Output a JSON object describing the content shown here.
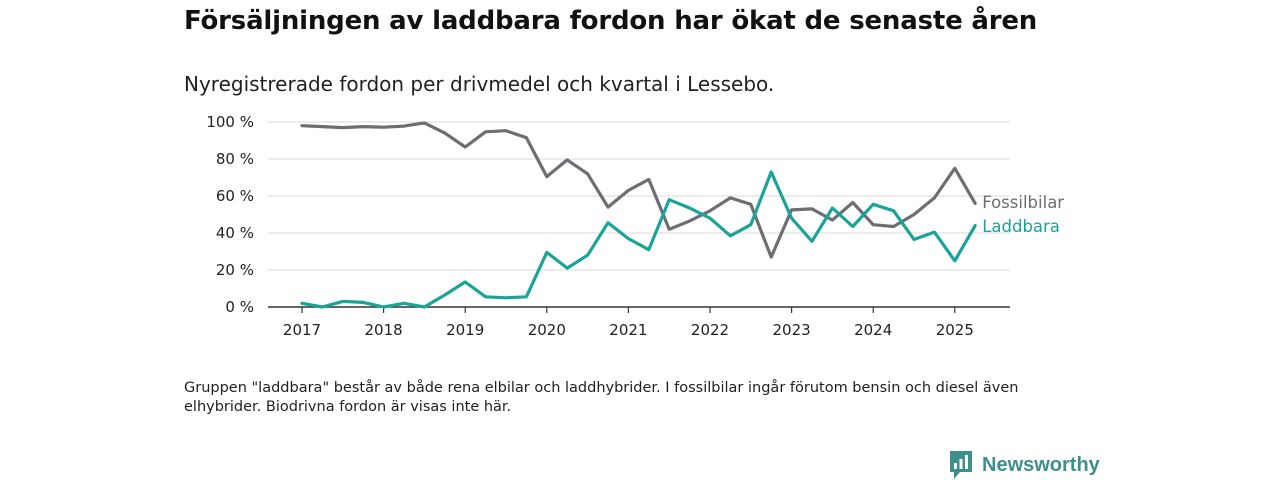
{
  "title": "Försäljningen av laddbara fordon har ökat de senaste åren",
  "subtitle": "Nyregistrerade fordon per drivmedel och kvartal i Lessebo.",
  "note": "Gruppen \"laddbara\" består av både rena elbilar och laddhybrider. I fossilbilar ingår förutom bensin och diesel även elhybrider. Biodrivna fordon är visas inte här.",
  "brand": {
    "name": "Newsworthy",
    "icon": "newsworthy-logo-icon",
    "color": "#3d8f8b"
  },
  "chart_data": {
    "type": "line",
    "x_start": "2017-Q1",
    "x_tick_labels": [
      "2017",
      "2018",
      "2019",
      "2020",
      "2021",
      "2022",
      "2023",
      "2024",
      "2025"
    ],
    "ylim": [
      0,
      100
    ],
    "y_ticks": [
      0,
      20,
      40,
      60,
      80,
      100
    ],
    "y_tick_labels": [
      "0 %",
      "20 %",
      "40 %",
      "60 %",
      "80 %",
      "100 %"
    ],
    "grid": true,
    "legend": "end-of-line labels",
    "series": [
      {
        "name": "Fossilbilar",
        "color": "#6d6d72",
        "values": [
          98,
          97.5,
          97,
          97.5,
          97.2,
          97.8,
          99.5,
          94,
          86.5,
          94.7,
          95.3,
          91.5,
          70.5,
          79.5,
          72,
          54,
          63,
          69,
          42,
          46.5,
          52,
          59,
          55.5,
          27,
          52.5,
          53,
          47,
          56.5,
          44.5,
          43.5,
          50,
          59,
          75,
          56
        ]
      },
      {
        "name": "Laddbara",
        "color": "#1aa39a",
        "values": [
          2,
          0,
          3,
          2.5,
          0,
          2,
          0,
          6.5,
          13.5,
          5.5,
          5,
          5.5,
          29.5,
          21,
          28,
          45.5,
          37,
          31,
          58,
          53.5,
          48,
          38.5,
          44.5,
          73,
          48,
          35.5,
          53.5,
          43.5,
          55.5,
          52,
          36.5,
          40.5,
          25,
          44
        ]
      }
    ]
  }
}
